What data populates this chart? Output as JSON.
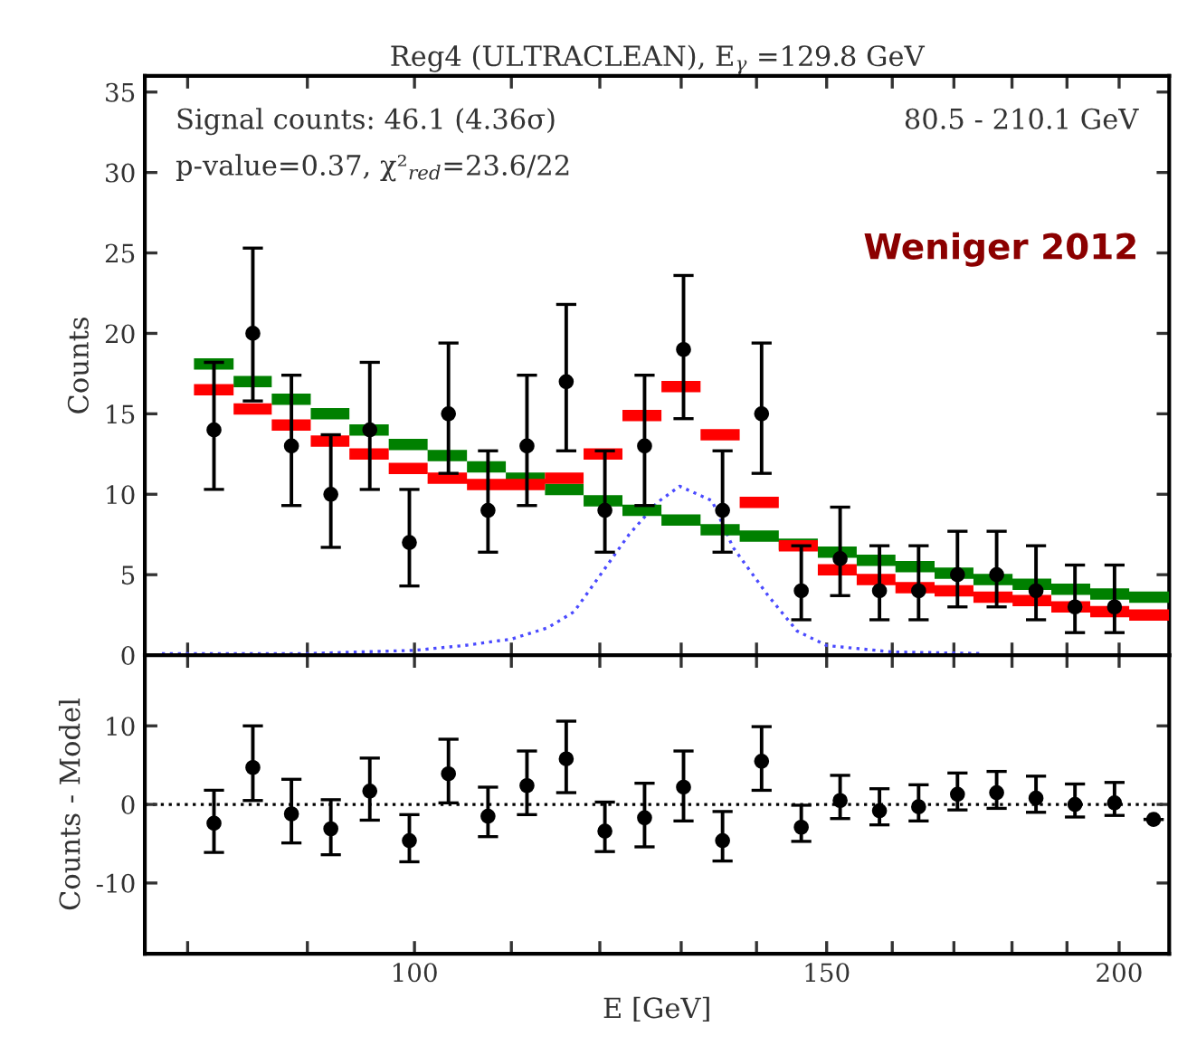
{
  "chart_data": [
    {
      "type": "scatter",
      "title": "Reg4 (ULTRACLEAN), E$_{γ}$ =129.8 GeV",
      "ylabel": "Counts",
      "log": "x",
      "x": [
        82.1,
        85.3,
        88.6,
        92.1,
        95.7,
        99.5,
        103.4,
        107.5,
        111.7,
        116.1,
        120.6,
        125.4,
        130.3,
        135.4,
        140.7,
        146.3,
        152.0,
        158.0,
        164.2,
        170.6,
        177.3,
        184.3,
        191.5,
        199.1
      ],
      "xlim": [
        76.7,
        210.1
      ],
      "xticks": [
        {
          "value": 80,
          "label": null
        },
        {
          "value": 90,
          "label": null
        },
        100,
        {
          "value": 110,
          "label": null
        },
        {
          "value": 120,
          "label": null
        },
        {
          "value": 130,
          "label": null
        },
        {
          "value": 140,
          "label": null
        },
        150,
        {
          "value": 160,
          "label": null
        },
        {
          "value": 170,
          "label": null
        },
        {
          "value": 180,
          "label": null
        },
        {
          "value": 190,
          "label": null
        },
        200
      ],
      "ylim": [
        0,
        36
      ],
      "yticks": [
        0,
        5,
        10,
        15,
        20,
        25,
        30,
        35
      ],
      "tick_labels": "y",
      "annotations": [
        "Signal counts: 46.1 (4.36σ)",
        "p-value=0.37, χ²$_{red}$=23.6/22",
        "80.5 - 210.1 GeV",
        "Weniger 2012"
      ],
      "series": [
        {
          "type": "step",
          "color": "#008000",
          "x": [
            80.5,
            83.7,
            86.9,
            90.3,
            93.8,
            97.5,
            101.3,
            105.3,
            109.4,
            113.7,
            118.1,
            122.7,
            127.5,
            132.5,
            137.7,
            143.1,
            148.7,
            154.5,
            160.5,
            166.8,
            173.3,
            180.1,
            187.1,
            194.4,
            202.0,
            210.1
          ],
          "values": [
            18.1,
            17.0,
            15.9,
            15.0,
            14.0,
            13.1,
            12.4,
            11.7,
            11.0,
            10.3,
            9.6,
            9.0,
            8.4,
            7.8,
            7.4,
            6.9,
            6.4,
            5.9,
            5.5,
            5.1,
            4.7,
            4.4,
            4.1,
            3.8,
            3.6,
            3.6
          ]
        },
        {
          "type": "step",
          "color": "#ff0000",
          "x": [
            80.5,
            83.7,
            86.9,
            90.3,
            93.8,
            97.5,
            101.3,
            105.3,
            109.4,
            113.7,
            118.1,
            122.7,
            127.5,
            132.5,
            137.7,
            143.1,
            148.7,
            154.5,
            160.5,
            166.8,
            173.3,
            180.1,
            187.1,
            194.4,
            202.0,
            210.1
          ],
          "values": [
            16.5,
            15.3,
            14.3,
            13.3,
            12.5,
            11.6,
            11.0,
            10.6,
            10.6,
            11.0,
            12.5,
            14.9,
            16.7,
            13.7,
            9.5,
            6.8,
            5.3,
            4.7,
            4.2,
            4.0,
            3.6,
            3.4,
            3.0,
            2.7,
            2.5,
            2.5
          ]
        },
        {
          "type": "line",
          "color": "#4a4aff",
          "line_style": "dotted",
          "x": [
            78,
            90,
            100,
            105,
            110,
            114,
            117,
            119.4,
            123.5,
            127,
            129.8,
            134,
            136.8,
            141.6,
            145.7,
            150,
            160,
            175
          ],
          "values": [
            0.1,
            0.1,
            0.3,
            0.6,
            1.0,
            1.7,
            2.7,
            4.5,
            7.5,
            9.5,
            10.5,
            9.6,
            6.7,
            3.7,
            1.5,
            0.6,
            0.2,
            0.1
          ]
        },
        {
          "type": "scatter",
          "color": "#000000",
          "marker": "circle",
          "values": [
            14,
            20,
            13,
            10,
            14,
            7,
            15,
            9,
            13,
            17,
            9,
            13,
            19,
            9,
            15,
            4,
            6,
            4,
            4,
            5,
            5,
            4,
            3,
            3
          ],
          "errors": [
            [
              10.3,
              18.2
            ],
            [
              15.8,
              25.3
            ],
            [
              9.3,
              17.4
            ],
            [
              6.7,
              13.7
            ],
            [
              10.3,
              18.2
            ],
            [
              4.3,
              10.3
            ],
            [
              11.3,
              19.4
            ],
            [
              6.4,
              12.7
            ],
            [
              9.3,
              17.4
            ],
            [
              12.7,
              21.8
            ],
            [
              6.4,
              12.7
            ],
            [
              9.3,
              17.4
            ],
            [
              14.7,
              23.6
            ],
            [
              6.4,
              12.7
            ],
            [
              11.3,
              19.4
            ],
            [
              2.2,
              6.8
            ],
            [
              3.7,
              9.2
            ],
            [
              2.2,
              6.8
            ],
            [
              2.2,
              6.8
            ],
            [
              3.0,
              7.7
            ],
            [
              3.0,
              7.7
            ],
            [
              2.2,
              6.8
            ],
            [
              1.4,
              5.6
            ],
            [
              1.4,
              5.6
            ]
          ]
        }
      ]
    },
    {
      "type": "scatter",
      "xlabel": "E [GeV]",
      "ylabel": "Counts - Model",
      "log": "x",
      "x": [
        82.1,
        85.3,
        88.6,
        92.1,
        95.7,
        99.5,
        103.4,
        107.5,
        111.7,
        116.1,
        120.6,
        125.4,
        130.3,
        135.4,
        140.7,
        146.3,
        152.0,
        158.0,
        164.2,
        170.6,
        177.3,
        184.3,
        191.5,
        199.1,
        206.9
      ],
      "xlim": [
        76.7,
        210.1
      ],
      "xticks": [
        {
          "value": 80,
          "label": null
        },
        {
          "value": 90,
          "label": null
        },
        100,
        {
          "value": 110,
          "label": null
        },
        {
          "value": 120,
          "label": null
        },
        {
          "value": 130,
          "label": null
        },
        {
          "value": 140,
          "label": null
        },
        150,
        {
          "value": 160,
          "label": null
        },
        {
          "value": 170,
          "label": null
        },
        {
          "value": 180,
          "label": null
        },
        {
          "value": 190,
          "label": null
        },
        200
      ],
      "ylim": [
        -19,
        19
      ],
      "yticks": [
        -10,
        0,
        10
      ],
      "marker": "circle",
      "ref_lines": [
        {
          "axis": "y",
          "value": 0,
          "label": null,
          "color": "#000000",
          "line_style": "dotted"
        }
      ],
      "series": [
        {
          "color": "#000000",
          "values": [
            -2.4,
            4.7,
            -1.2,
            -3.1,
            1.7,
            -4.6,
            3.9,
            -1.5,
            2.4,
            5.8,
            -3.4,
            -1.7,
            2.2,
            -4.6,
            5.5,
            -2.9,
            0.5,
            -0.8,
            -0.3,
            1.3,
            1.5,
            0.8,
            0.0,
            0.2,
            -1.9
          ],
          "errors": [
            [
              -6.1,
              1.8
            ],
            [
              0.5,
              10.0
            ],
            [
              -4.9,
              3.2
            ],
            [
              -6.4,
              0.6
            ],
            [
              -2.0,
              5.9
            ],
            [
              -7.3,
              -1.3
            ],
            [
              0.2,
              8.3
            ],
            [
              -4.1,
              2.2
            ],
            [
              -1.3,
              6.8
            ],
            [
              1.5,
              10.6
            ],
            [
              -6.0,
              0.3
            ],
            [
              -5.4,
              2.7
            ],
            [
              -2.1,
              6.8
            ],
            [
              -7.2,
              -0.9
            ],
            [
              1.8,
              9.9
            ],
            [
              -4.7,
              -0.1
            ],
            [
              -1.8,
              3.7
            ],
            [
              -2.6,
              2.0
            ],
            [
              -2.1,
              2.5
            ],
            [
              -0.7,
              4.0
            ],
            [
              -0.5,
              4.2
            ],
            [
              -1.0,
              3.6
            ],
            [
              -1.6,
              2.6
            ],
            [
              -1.4,
              2.8
            ],
            null
          ]
        }
      ]
    }
  ]
}
